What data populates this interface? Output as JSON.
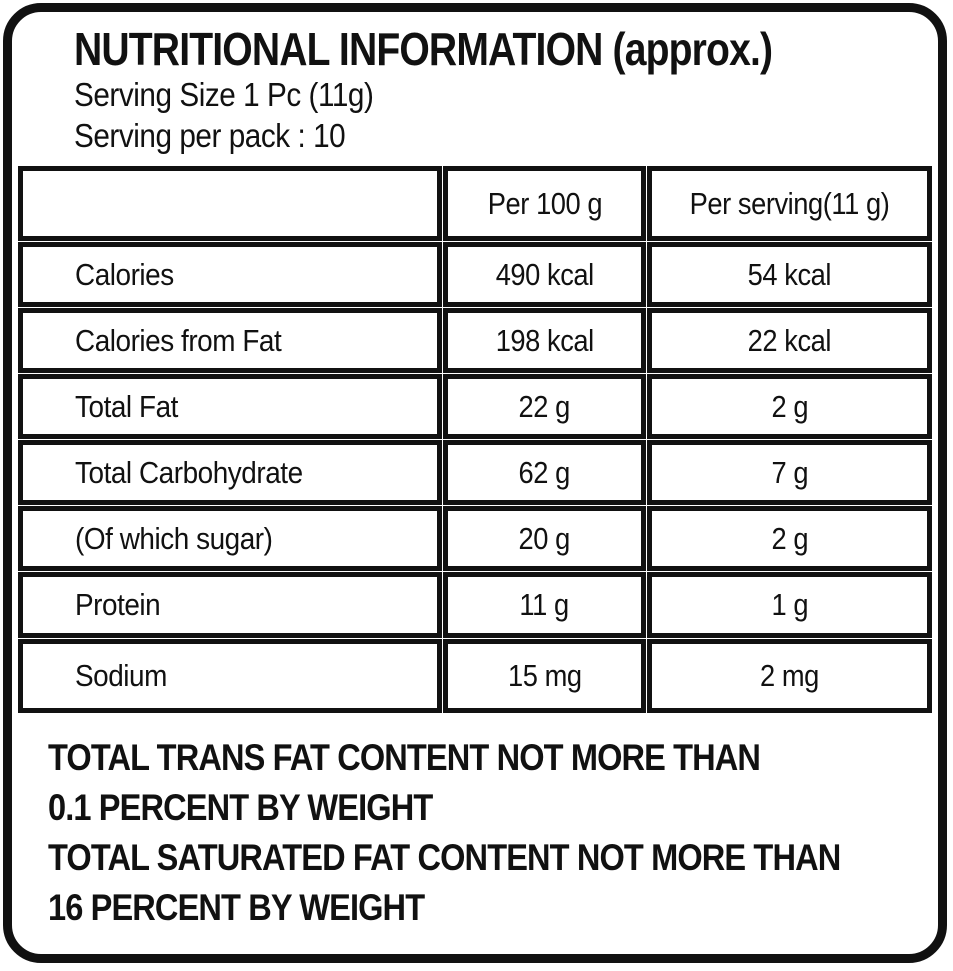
{
  "label": {
    "title": "NUTRITIONAL INFORMATION (approx.)",
    "serving_size": "Serving Size 1 Pc (11g)",
    "serving_per_pack": "Serving per pack : 10"
  },
  "table": {
    "columns": [
      "",
      "Per 100 g",
      "Per serving(11 g)"
    ],
    "rows": [
      {
        "nutrient": "Calories",
        "per_100g": "490 kcal",
        "per_serving": "54 kcal"
      },
      {
        "nutrient": "Calories from Fat",
        "per_100g": "198 kcal",
        "per_serving": "22 kcal"
      },
      {
        "nutrient": "Total Fat",
        "per_100g": "22 g",
        "per_serving": "2 g"
      },
      {
        "nutrient": "Total Carbohydrate",
        "per_100g": "62 g",
        "per_serving": "7 g"
      },
      {
        "nutrient": "(Of which sugar)",
        "per_100g": "20 g",
        "per_serving": "2 g"
      },
      {
        "nutrient": "Protein",
        "per_100g": "11 g",
        "per_serving": "1 g"
      },
      {
        "nutrient": "Sodium",
        "per_100g": "15 mg",
        "per_serving": "2 mg"
      }
    ]
  },
  "footnotes": [
    "TOTAL TRANS FAT CONTENT NOT MORE THAN",
    "0.1 PERCENT BY WEIGHT",
    "TOTAL SATURATED FAT CONTENT NOT MORE THAN",
    "16 PERCENT BY WEIGHT"
  ],
  "colors": {
    "ink": "#111111",
    "background": "#ffffff"
  }
}
